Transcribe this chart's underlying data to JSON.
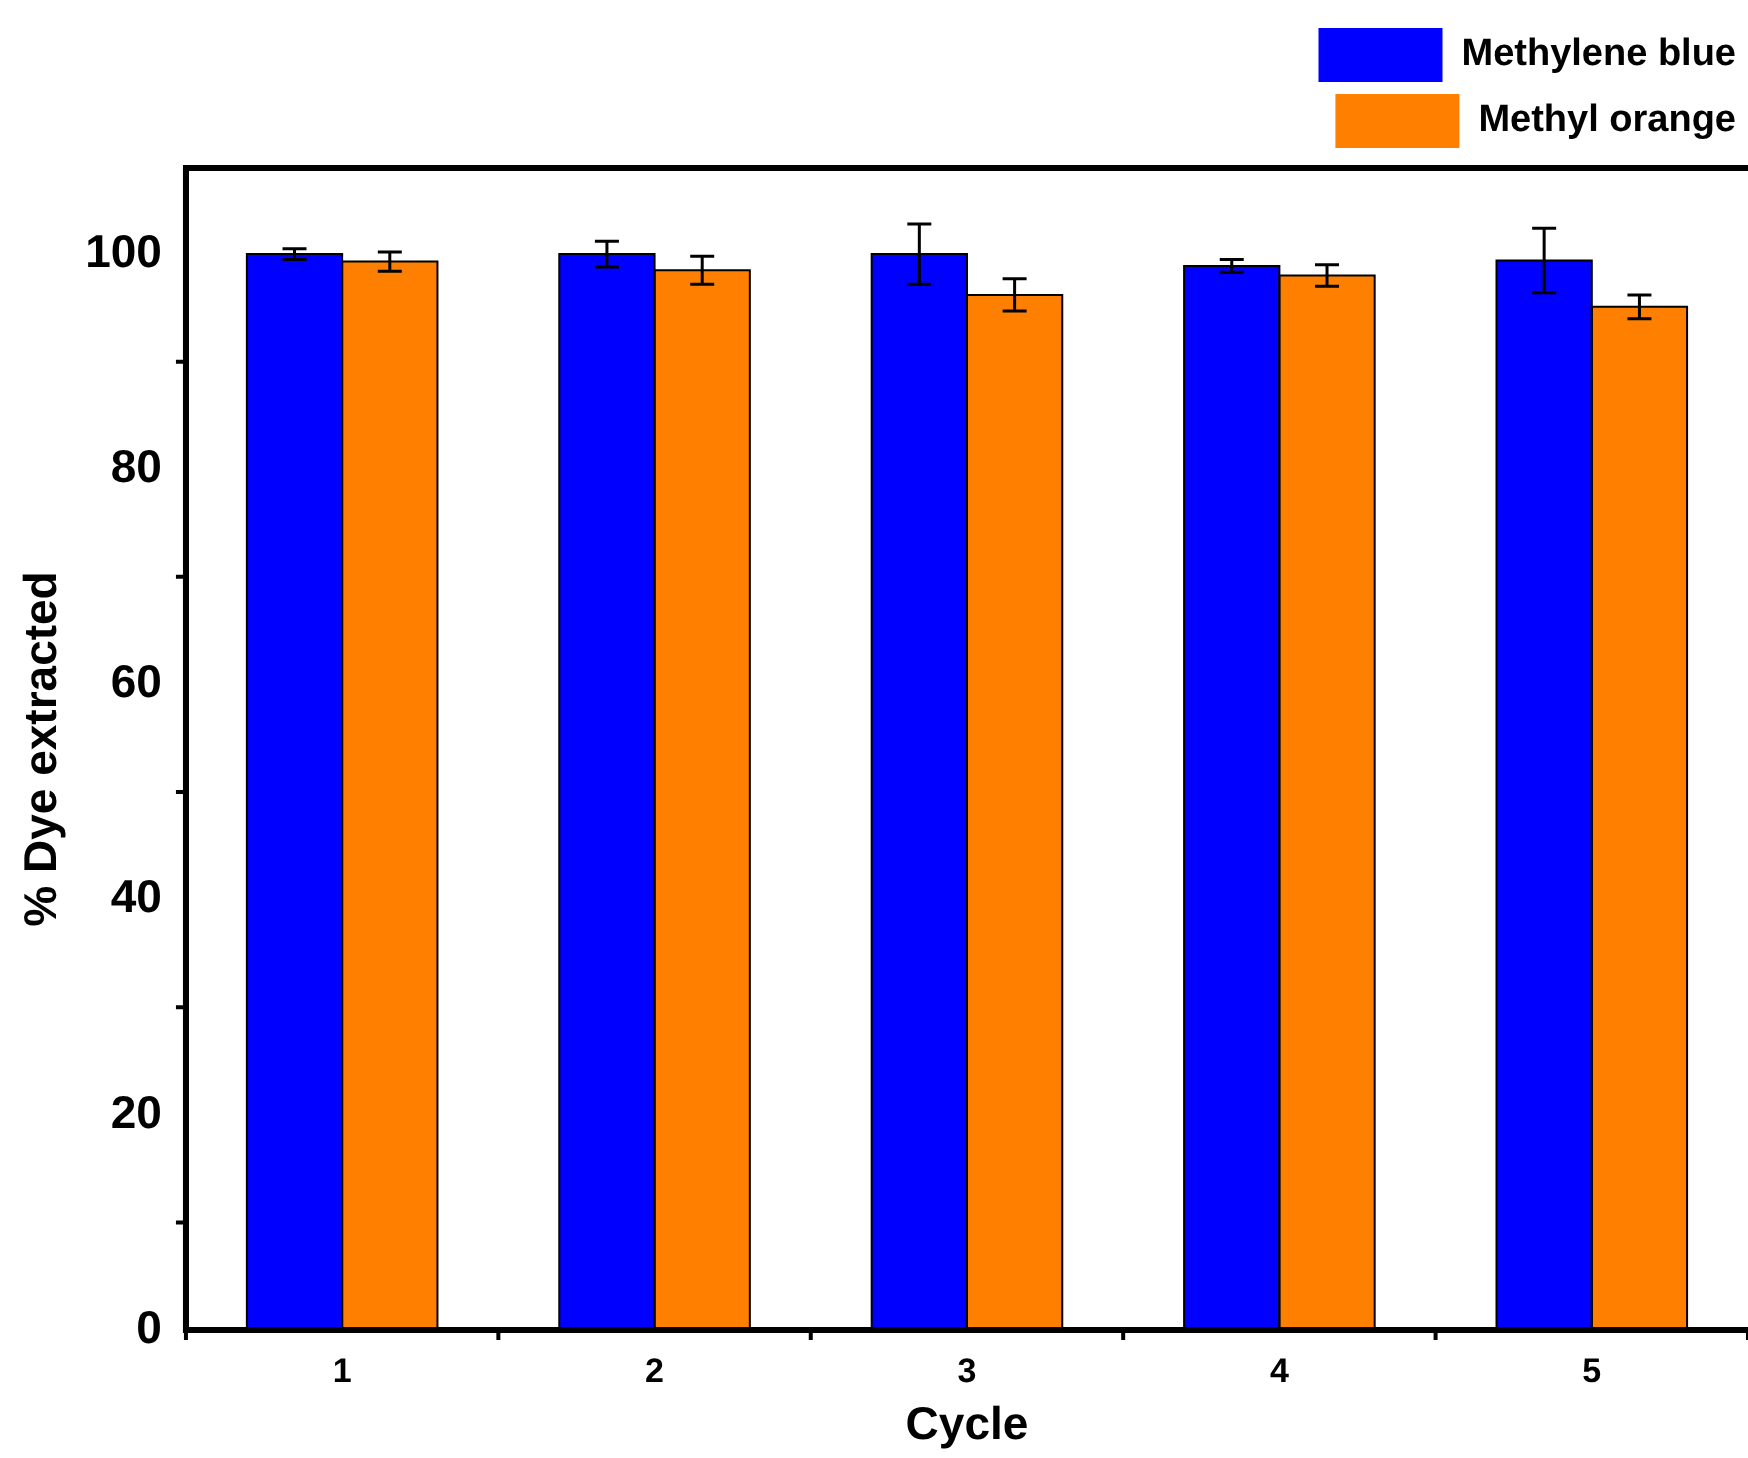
{
  "chart_data": {
    "type": "bar",
    "xlabel": "Cycle",
    "ylabel": "% Dye extracted",
    "categories": [
      "1",
      "2",
      "3",
      "4",
      "5"
    ],
    "series": [
      {
        "name": "Methylene blue",
        "color": "#0000ff",
        "values": [
          100,
          100,
          100,
          98.9,
          99.4
        ],
        "errors": [
          0.5,
          1.2,
          2.8,
          0.6,
          3
        ]
      },
      {
        "name": "Methyl orange",
        "color": "#ff8000",
        "values": [
          99.3,
          98.5,
          96.2,
          98.0,
          95.1
        ],
        "errors": [
          0.9,
          1.3,
          1.5,
          1,
          1.1
        ]
      }
    ],
    "ylim": [
      0,
      108
    ],
    "yticks": [
      0,
      20,
      40,
      60,
      80,
      100
    ],
    "grid": false,
    "legend": "top right"
  }
}
